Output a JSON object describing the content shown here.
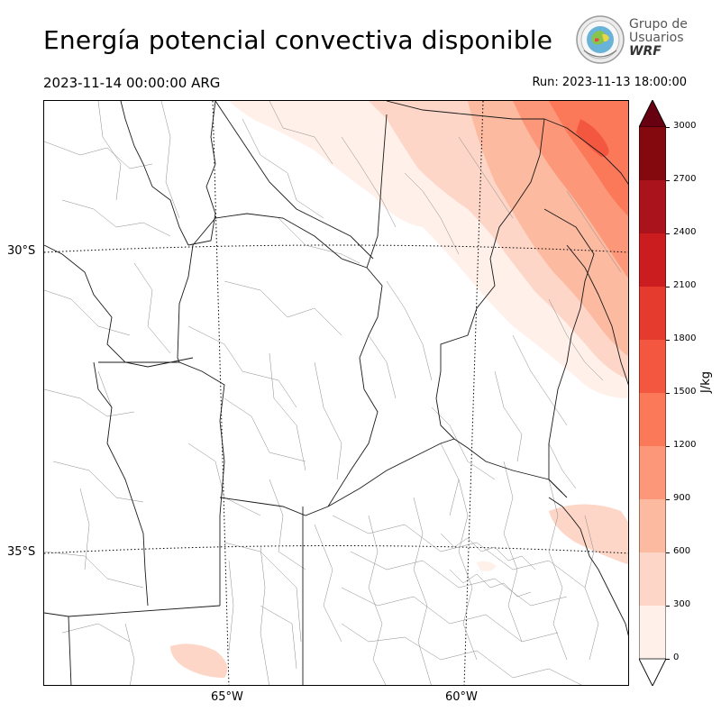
{
  "header": {
    "title": "Energía potencial convectiva disponible",
    "valid_time": "2023-11-14 00:00:00 ARG",
    "run_time": "Run: 2023-11-13 18:00:00"
  },
  "logo": {
    "line1": "Grupo de",
    "line2": "Usuarios",
    "line3": "WRF"
  },
  "map": {
    "lat_labels": [
      "30°S",
      "35°S"
    ],
    "lon_labels": [
      "65°W",
      "60°W"
    ]
  },
  "colorbar": {
    "unit": "J/kg",
    "ticks": [
      "0",
      "300",
      "600",
      "900",
      "1200",
      "1500",
      "1800",
      "2100",
      "2400",
      "2700",
      "3000"
    ],
    "colors": [
      "#fff0ea",
      "#fdd6c7",
      "#fcbaa0",
      "#fc9879",
      "#fb7858",
      "#f4573f",
      "#e53a2e",
      "#cb1c1f",
      "#aa131b",
      "#84090f"
    ],
    "over_color": "#670010",
    "under_color": "#ffffff"
  }
}
